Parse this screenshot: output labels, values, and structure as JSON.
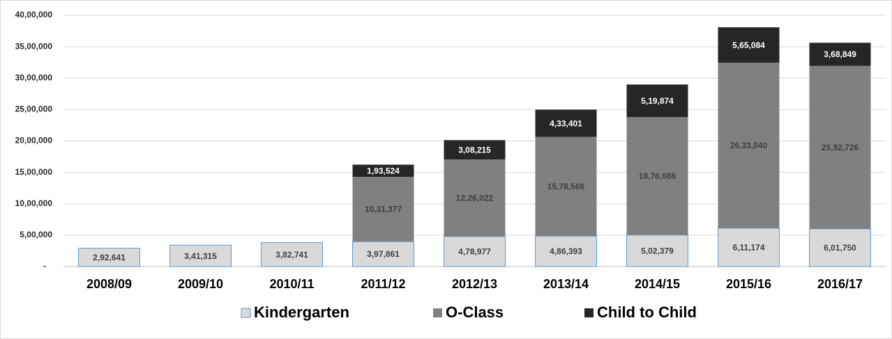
{
  "chart_data": {
    "type": "stacked_bar",
    "categories": [
      "2008/09",
      "2009/10",
      "2010/11",
      "2011/12",
      "2012/13",
      "2013/14",
      "2014/15",
      "2015/16",
      "2016/17"
    ],
    "series": [
      {
        "name": "Kindergarten",
        "color": "#d9d9d9",
        "values": [
          292641,
          341315,
          382741,
          397861,
          478977,
          486393,
          502379,
          611174,
          601750
        ],
        "value_labels": [
          "2,92,641",
          "3,41,315",
          "3,82,741",
          "3,97,861",
          "4,78,977",
          "4,86,393",
          "5,02,379",
          "6,11,174",
          "6,01,750"
        ]
      },
      {
        "name": "O-Class",
        "color": "#808080",
        "values": [
          null,
          null,
          null,
          1031377,
          1226022,
          1578566,
          1876086,
          2633040,
          2592726
        ],
        "value_labels": [
          null,
          null,
          null,
          "10,31,377",
          "12,26,022",
          "15,78,566",
          "18,76,086",
          "26,33,040",
          "25,92,726"
        ]
      },
      {
        "name": "Child to Child",
        "color": "#262626",
        "values": [
          null,
          null,
          null,
          193524,
          308215,
          433401,
          519874,
          565084,
          368849
        ],
        "value_labels": [
          null,
          null,
          null,
          "1,93,524",
          "3,08,215",
          "4,33,401",
          "5,19,874",
          "5,65,084",
          "3,68,849"
        ]
      }
    ],
    "ylim": [
      0,
      4000000
    ],
    "yticks": [
      {
        "value": 0,
        "label": "-"
      },
      {
        "value": 500000,
        "label": "5,00,000"
      },
      {
        "value": 1000000,
        "label": "10,00,000"
      },
      {
        "value": 1500000,
        "label": "15,00,000"
      },
      {
        "value": 2000000,
        "label": "20,00,000"
      },
      {
        "value": 2500000,
        "label": "25,00,000"
      },
      {
        "value": 3000000,
        "label": "30,00,000"
      },
      {
        "value": 3500000,
        "label": "35,00,000"
      },
      {
        "value": 4000000,
        "label": "40,00,000"
      }
    ],
    "grid": true,
    "legend": "bottom"
  }
}
